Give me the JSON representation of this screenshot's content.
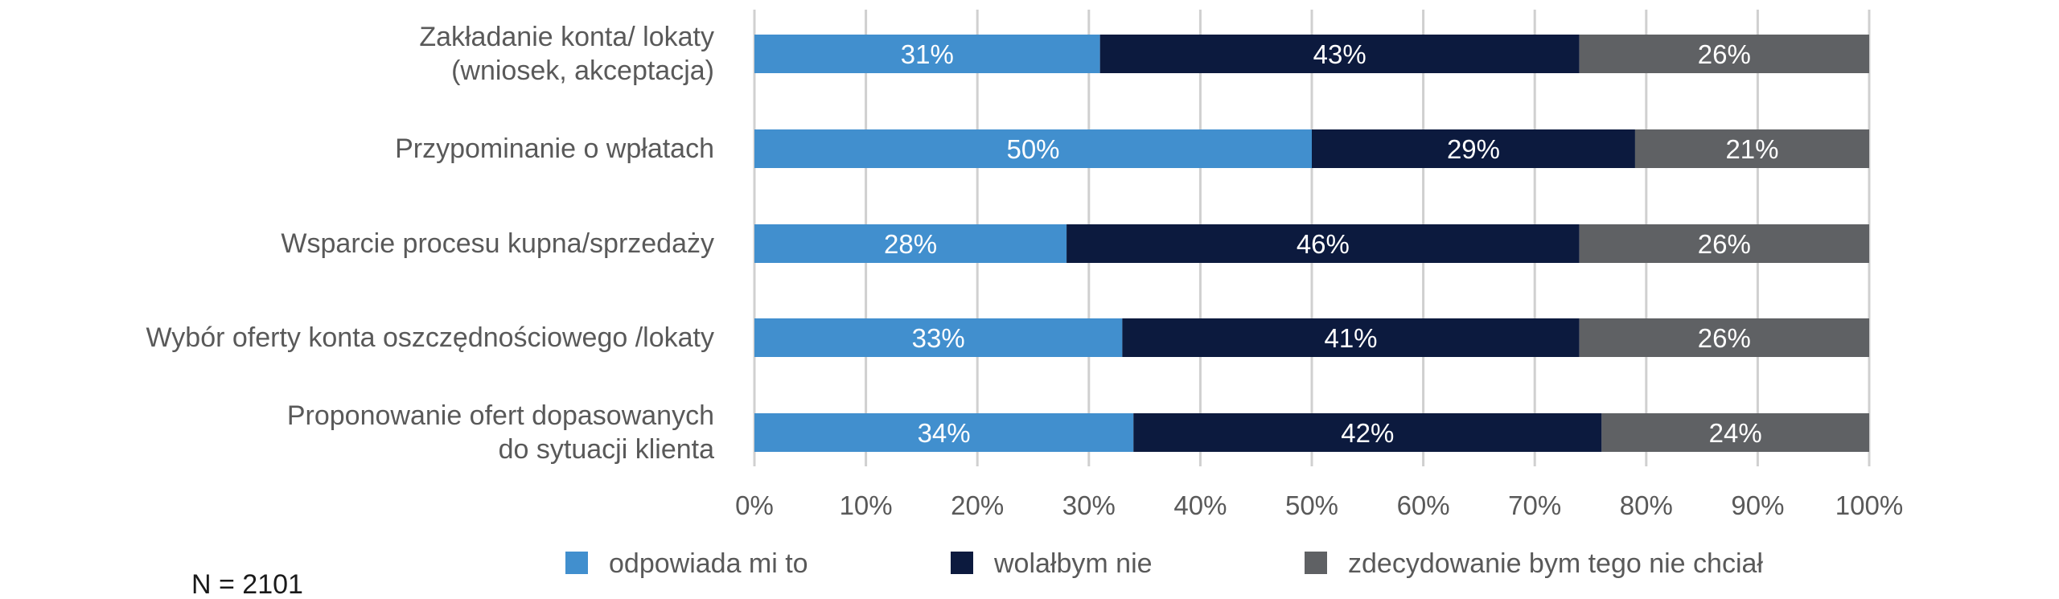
{
  "chart_data": {
    "type": "bar",
    "orientation": "horizontal",
    "stacked": true,
    "percent_stacked": true,
    "categories": [
      [
        "Zakładanie konta/ lokaty",
        "(wniosek, akceptacja)"
      ],
      [
        "Przypominanie o wpłatach"
      ],
      [
        "Wsparcie procesu kupna/sprzedaży"
      ],
      [
        "Wybór oferty konta oszczędnościowego /lokaty"
      ],
      [
        "Proponowanie ofert dopasowanych",
        "do sytuacji klienta"
      ]
    ],
    "series": [
      {
        "name": "odpowiada mi to",
        "color": "#418fce",
        "values": [
          31,
          50,
          28,
          33,
          34
        ],
        "labels": [
          "31%",
          "50%",
          "28%",
          "33%",
          "34%"
        ]
      },
      {
        "name": "wolałbym nie",
        "color": "#0c1a3e",
        "values": [
          43,
          29,
          46,
          41,
          42
        ],
        "labels": [
          "43%",
          "29%",
          "46%",
          "41%",
          "42%"
        ]
      },
      {
        "name": "zdecydowanie bym tego nie chciał",
        "color": "#5f6164",
        "values": [
          26,
          21,
          26,
          26,
          24
        ],
        "labels": [
          "26%",
          "21%",
          "26%",
          "26%",
          "24%"
        ]
      }
    ],
    "xlim": [
      0,
      100
    ],
    "xticks": [
      "0%",
      "10%",
      "20%",
      "30%",
      "40%",
      "50%",
      "60%",
      "70%",
      "80%",
      "90%",
      "100%"
    ],
    "grid": "vertical",
    "legend_position": "bottom",
    "title": "",
    "xlabel": "",
    "ylabel": ""
  },
  "footnote": "N = 2101"
}
